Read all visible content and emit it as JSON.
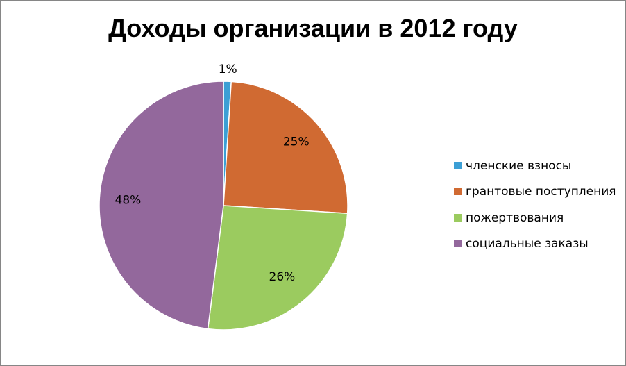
{
  "chart_data": {
    "type": "pie",
    "title": "Доходы организации в 2012 году",
    "categories": [
      "членские взносы",
      "грантовые поступления",
      "пожертвования",
      "социальные заказы"
    ],
    "values": [
      1,
      25,
      26,
      48
    ],
    "data_labels": [
      "1%",
      "25%",
      "26%",
      "48%"
    ],
    "colors": [
      "#3C9FD5",
      "#D06A32",
      "#9BCB5F",
      "#93689C"
    ],
    "legend": "right"
  }
}
